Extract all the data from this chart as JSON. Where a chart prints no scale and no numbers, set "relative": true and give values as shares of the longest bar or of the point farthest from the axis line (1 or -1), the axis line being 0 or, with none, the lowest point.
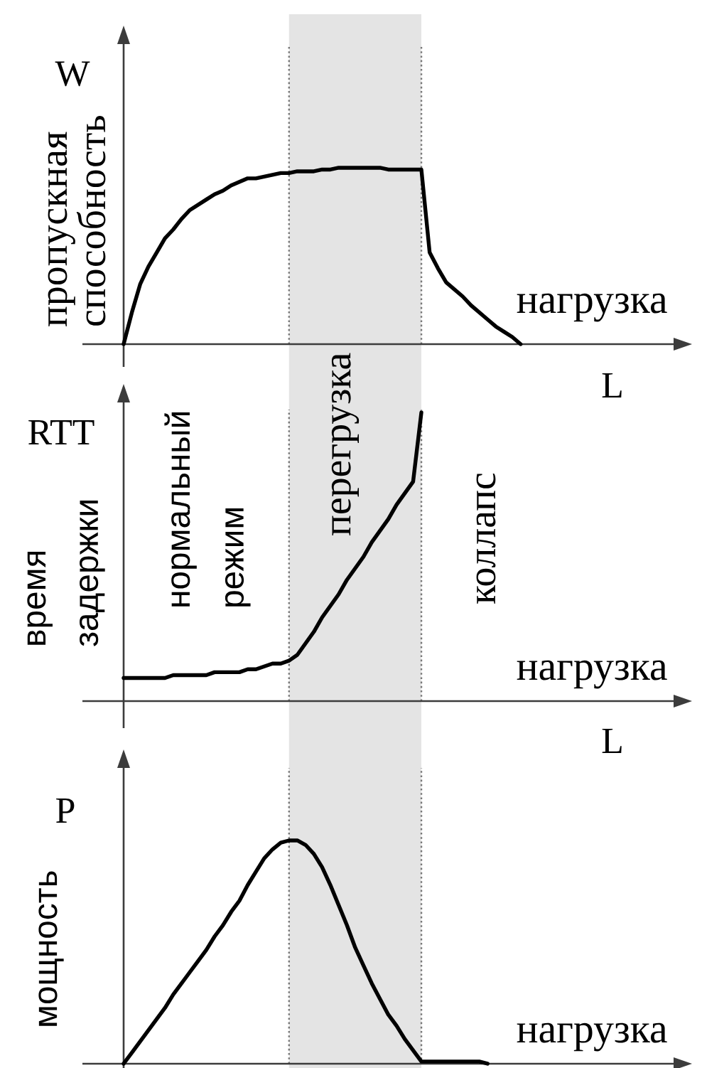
{
  "chart_data": [
    {
      "type": "line",
      "relative": true,
      "xlabel": "нагрузка",
      "ylabel": "пропускная способность",
      "annotations": [
        "W",
        "L"
      ],
      "categories": [
        null,
        null,
        null,
        null,
        null,
        null,
        null,
        null,
        null,
        null,
        null,
        null,
        null,
        null,
        null,
        null,
        null,
        null,
        null,
        null,
        null,
        null,
        null,
        null,
        null,
        null,
        null,
        null,
        null,
        null,
        null,
        null,
        null,
        null,
        null,
        null,
        null,
        null,
        null,
        null,
        null,
        null,
        null,
        null,
        null,
        null,
        null,
        null,
        null,
        null,
        null,
        null,
        null,
        null,
        null,
        null,
        null,
        null,
        null,
        null,
        null,
        null,
        null,
        null,
        null,
        null,
        null,
        null,
        null
      ],
      "values": [
        0,
        0.18,
        0.34,
        0.44,
        0.52,
        0.6,
        0.65,
        0.71,
        0.76,
        0.79,
        0.82,
        0.85,
        0.87,
        0.9,
        0.92,
        0.94,
        0.94,
        0.95,
        0.96,
        0.97,
        0.97,
        0.98,
        0.98,
        0.98,
        0.99,
        0.99,
        1,
        1,
        1,
        1,
        1,
        1,
        0.99,
        0.99,
        0.99,
        0.99,
        0.99,
        0.52,
        0.43,
        0.35,
        0.31,
        0.27,
        0.22,
        0.18,
        0.14,
        0.1,
        0.07,
        0.04,
        0,
        null,
        null,
        null,
        null,
        null,
        null,
        null,
        null,
        null,
        null,
        null,
        null,
        null,
        null,
        null,
        null,
        null,
        null,
        null,
        null
      ],
      "color": "#000000"
    },
    {
      "type": "line",
      "relative": true,
      "xlabel": "нагрузка",
      "ylabel": "время задержки",
      "annotations": [
        "RTT",
        "L",
        "нормальный режим",
        "перегрузка",
        "коллапс"
      ],
      "categories": [
        null,
        null,
        null,
        null,
        null,
        null,
        null,
        null,
        null,
        null,
        null,
        null,
        null,
        null,
        null,
        null,
        null,
        null,
        null,
        null,
        null,
        null,
        null,
        null,
        null,
        null,
        null,
        null,
        null,
        null,
        null,
        null,
        null,
        null,
        null,
        null,
        null,
        null,
        null,
        null,
        null,
        null,
        null,
        null,
        null,
        null,
        null,
        null,
        null,
        null,
        null,
        null,
        null,
        null,
        null,
        null,
        null,
        null,
        null,
        null,
        null,
        null,
        null,
        null,
        null,
        null,
        null,
        null,
        null
      ],
      "values": [
        0.08,
        0.08,
        0.08,
        0.08,
        0.08,
        0.08,
        0.09,
        0.09,
        0.09,
        0.09,
        0.09,
        0.1,
        0.1,
        0.1,
        0.1,
        0.11,
        0.11,
        0.12,
        0.13,
        0.13,
        0.14,
        0.16,
        0.2,
        0.24,
        0.29,
        0.33,
        0.37,
        0.42,
        0.46,
        0.5,
        0.55,
        0.59,
        0.63,
        0.68,
        0.72,
        0.76,
        1,
        null,
        null,
        null,
        null,
        null,
        null,
        null,
        null,
        null,
        null,
        null,
        null,
        null,
        null,
        null,
        null,
        null,
        null,
        null,
        null,
        null,
        null,
        null,
        null,
        null,
        null,
        null,
        null,
        null,
        null,
        null,
        null
      ],
      "color": "#000000"
    },
    {
      "type": "line",
      "relative": true,
      "xlabel": "нагрузка",
      "ylabel": "мощность",
      "annotations": [
        "P"
      ],
      "categories": [
        null,
        null,
        null,
        null,
        null,
        null,
        null,
        null,
        null,
        null,
        null,
        null,
        null,
        null,
        null,
        null,
        null,
        null,
        null,
        null,
        null,
        null,
        null,
        null,
        null,
        null,
        null,
        null,
        null,
        null,
        null,
        null,
        null,
        null,
        null,
        null,
        null,
        null,
        null,
        null,
        null,
        null,
        null,
        null,
        null,
        null,
        null,
        null,
        null,
        null,
        null,
        null,
        null,
        null,
        null,
        null,
        null,
        null,
        null,
        null,
        null,
        null,
        null,
        null,
        null,
        null,
        null,
        null,
        null
      ],
      "values": [
        0,
        0.05,
        0.1,
        0.15,
        0.2,
        0.25,
        0.31,
        0.36,
        0.41,
        0.46,
        0.51,
        0.57,
        0.62,
        0.68,
        0.73,
        0.8,
        0.86,
        0.92,
        0.96,
        0.99,
        1,
        1,
        0.98,
        0.94,
        0.88,
        0.8,
        0.71,
        0.62,
        0.52,
        0.44,
        0.36,
        0.29,
        0.22,
        0.17,
        0.11,
        0.06,
        0.01,
        0.01,
        0.01,
        0.01,
        0.01,
        0.01,
        0.01,
        0.01,
        0,
        null,
        null,
        null,
        null,
        null,
        null,
        null,
        null,
        null,
        null,
        null,
        null,
        null,
        null,
        null,
        null,
        null,
        null,
        null,
        null,
        null,
        null,
        null,
        null
      ],
      "color": "#000000"
    }
  ]
}
